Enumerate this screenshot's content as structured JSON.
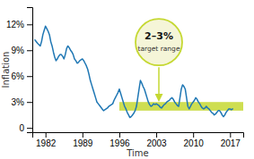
{
  "chart_data": {
    "type": "line",
    "xlabel": "Time",
    "ylabel": "Inflation",
    "x": [
      1980,
      1980.5,
      1981,
      1981.25,
      1981.5,
      1981.75,
      1982,
      1982.25,
      1982.5,
      1982.75,
      1983,
      1983.25,
      1983.5,
      1983.75,
      1984,
      1984.25,
      1984.5,
      1984.75,
      1985,
      1985.25,
      1985.5,
      1985.75,
      1986,
      1986.25,
      1986.5,
      1986.75,
      1987,
      1987.25,
      1987.5,
      1987.75,
      1988,
      1988.25,
      1988.5,
      1988.75,
      1989,
      1989.25,
      1989.5,
      1989.75,
      1990,
      1990.25,
      1990.5,
      1990.75,
      1991,
      1991.25,
      1991.5,
      1991.75,
      1992,
      1992.25,
      1992.5,
      1992.75,
      1993,
      1993.25,
      1993.5,
      1993.75,
      1994,
      1994.25,
      1994.5,
      1994.75,
      1995,
      1995.25,
      1995.5,
      1995.75,
      1996,
      1996.25,
      1996.5,
      1996.75,
      1997,
      1997.25,
      1997.5,
      1997.75,
      1998,
      1998.25,
      1998.5,
      1998.75,
      1999,
      1999.25,
      1999.5,
      1999.75,
      2000,
      2000.25,
      2000.5,
      2000.75,
      2001,
      2001.25,
      2001.5,
      2001.75,
      2002,
      2002.25,
      2002.5,
      2002.75,
      2003,
      2003.25,
      2003.5,
      2003.75,
      2004,
      2004.25,
      2004.5,
      2004.75,
      2005,
      2005.25,
      2005.5,
      2005.75,
      2006,
      2006.25,
      2006.5,
      2006.75,
      2007,
      2007.25,
      2007.5,
      2007.75,
      2008,
      2008.25,
      2008.5,
      2008.75,
      2009,
      2009.25,
      2009.5,
      2009.75,
      2010,
      2010.25,
      2010.5,
      2010.75,
      2011,
      2011.25,
      2011.5,
      2011.75,
      2012,
      2012.25,
      2012.5,
      2012.75,
      2013,
      2013.25,
      2013.5,
      2013.75,
      2014,
      2014.25,
      2014.5,
      2014.75,
      2015,
      2015.25,
      2015.5,
      2015.75,
      2016,
      2016.25,
      2016.5,
      2016.75,
      2017,
      2017.25,
      2017.5
    ],
    "values": [
      10.2,
      9.8,
      9.5,
      10.0,
      10.8,
      11.3,
      11.8,
      11.5,
      11.2,
      10.8,
      10.0,
      9.5,
      8.8,
      8.2,
      7.8,
      8.0,
      8.3,
      8.5,
      8.5,
      8.3,
      8.0,
      8.5,
      9.2,
      9.5,
      9.3,
      9.0,
      8.8,
      8.5,
      8.0,
      7.8,
      7.5,
      7.6,
      7.8,
      7.9,
      8.0,
      7.8,
      7.5,
      7.2,
      6.8,
      6.2,
      5.5,
      5.0,
      4.5,
      4.0,
      3.5,
      3.0,
      2.8,
      2.6,
      2.4,
      2.2,
      2.0,
      2.1,
      2.2,
      2.3,
      2.5,
      2.6,
      2.7,
      2.8,
      3.2,
      3.5,
      3.8,
      4.1,
      4.5,
      4.0,
      3.5,
      3.0,
      2.5,
      2.2,
      1.8,
      1.5,
      1.2,
      1.3,
      1.5,
      1.7,
      2.0,
      2.5,
      3.5,
      4.5,
      5.5,
      5.2,
      4.8,
      4.5,
      4.0,
      3.5,
      3.0,
      2.7,
      2.5,
      2.6,
      2.8,
      2.7,
      2.8,
      2.7,
      2.6,
      2.4,
      2.3,
      2.5,
      2.7,
      2.8,
      3.0,
      3.1,
      3.2,
      3.4,
      3.5,
      3.3,
      3.0,
      2.8,
      2.6,
      2.5,
      3.5,
      4.5,
      5.0,
      4.8,
      4.5,
      3.5,
      2.5,
      2.2,
      2.5,
      2.8,
      3.0,
      3.2,
      3.5,
      3.3,
      3.0,
      2.8,
      2.5,
      2.3,
      2.2,
      2.3,
      2.5,
      2.3,
      2.2,
      2.0,
      1.8,
      1.7,
      1.5,
      1.6,
      1.8,
      2.0,
      2.0,
      1.8,
      1.5,
      1.3,
      1.5,
      1.8,
      2.0,
      2.2,
      2.2,
      2.1,
      2.2
    ],
    "xlim": [
      1979.5,
      2019.5
    ],
    "ylim": [
      -0.5,
      14
    ],
    "xticks": [
      1982,
      1989,
      1996,
      2003,
      2010,
      2017
    ],
    "yticks": [
      0,
      {
        "value": 3,
        "label": "3%"
      },
      {
        "value": 6,
        "label": "6%"
      },
      {
        "value": 9,
        "label": "9%"
      },
      {
        "value": 12,
        "label": "12%"
      }
    ],
    "grid": false,
    "band": {
      "low": 2,
      "high": 3,
      "start": 1996,
      "color": "#c5d832"
    },
    "annotation": {
      "text": "2–3%",
      "subtext": "target range"
    }
  }
}
